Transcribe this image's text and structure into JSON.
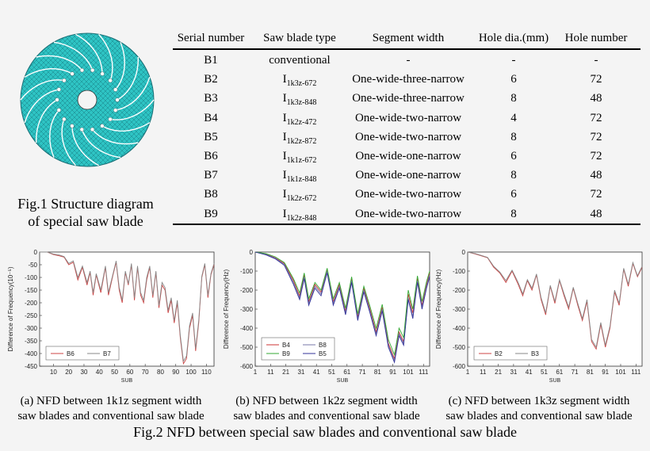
{
  "figure1": {
    "caption_line1": "Fig.1 Structure diagram",
    "caption_line2": "of special saw blade",
    "blade_color": "#2ec4c4"
  },
  "table": {
    "headers": [
      "Serial number",
      "Saw blade type",
      "Segment width",
      "Hole dia.(mm)",
      "Hole number"
    ],
    "rows": [
      {
        "serial": "B1",
        "type_base": "conventional",
        "type_sub": "",
        "segment": "-",
        "hole_dia": "-",
        "hole_num": "-"
      },
      {
        "serial": "B2",
        "type_base": "I",
        "type_sub": "1k3z-672",
        "segment": "One-wide-three-narrow",
        "hole_dia": "6",
        "hole_num": "72"
      },
      {
        "serial": "B3",
        "type_base": "I",
        "type_sub": "1k3z-848",
        "segment": "One-wide-three-narrow",
        "hole_dia": "8",
        "hole_num": "48"
      },
      {
        "serial": "B4",
        "type_base": "I",
        "type_sub": "1k2z-472",
        "segment": "One-wide-two-narrow",
        "hole_dia": "4",
        "hole_num": "72"
      },
      {
        "serial": "B5",
        "type_base": "I",
        "type_sub": "1k2z-872",
        "segment": "One-wide-two-narrow",
        "hole_dia": "8",
        "hole_num": "72"
      },
      {
        "serial": "B6",
        "type_base": "I",
        "type_sub": "1k1z-672",
        "segment": "One-wide-one-narrow",
        "hole_dia": "6",
        "hole_num": "72"
      },
      {
        "serial": "B7",
        "type_base": "I",
        "type_sub": "1k1z-848",
        "segment": "One-wide-one-narrow",
        "hole_dia": "8",
        "hole_num": "48"
      },
      {
        "serial": "B8",
        "type_base": "I",
        "type_sub": "1k2z-672",
        "segment": "One-wide-two-narrow",
        "hole_dia": "6",
        "hole_num": "72"
      },
      {
        "serial": "B9",
        "type_base": "I",
        "type_sub": "1k2z-848",
        "segment": "One-wide-two-narrow",
        "hole_dia": "8",
        "hole_num": "48"
      }
    ]
  },
  "captions": {
    "a_line1": "(a) NFD between 1k1z segment width",
    "a_line2": "saw blades and conventional saw blade",
    "b_line1": "(b) NFD between 1k2z segment width",
    "b_line2": "saw blades and conventional saw blade",
    "c_line1": "(c) NFD between 1k3z segment width",
    "c_line2": "saw blades and conventional saw blade",
    "fig2": "Fig.2 NFD between special saw blades and conventional saw blade"
  },
  "chart_data": [
    {
      "type": "line",
      "xlabel": "SUB",
      "ylabel": "Difference of Frequency(10⁻⁵)",
      "xlim": [
        1,
        115
      ],
      "ylim": [
        -450,
        0
      ],
      "xticks": [
        10,
        20,
        30,
        40,
        50,
        60,
        70,
        80,
        90,
        100,
        110
      ],
      "yticks": [
        0,
        -50,
        -100,
        -150,
        -200,
        -250,
        -300,
        -350,
        -400,
        -450
      ],
      "legend": [
        "B6",
        "B7"
      ],
      "series": [
        {
          "name": "B6",
          "color": "#cc4444",
          "x": [
            1,
            6,
            10,
            14,
            17,
            20,
            23,
            26,
            29,
            32,
            34,
            36,
            38,
            41,
            44,
            46,
            49,
            51,
            53,
            55,
            57,
            59,
            61,
            63,
            65,
            67,
            69,
            71,
            73,
            75,
            77,
            79,
            81,
            83,
            85,
            87,
            89,
            91,
            93,
            95,
            97,
            99,
            101,
            103,
            105,
            107,
            109,
            111,
            113,
            115
          ],
          "y": [
            0,
            0,
            -10,
            -15,
            -20,
            -50,
            -40,
            -110,
            -60,
            -130,
            -80,
            -170,
            -90,
            -160,
            -60,
            -170,
            -90,
            -40,
            -150,
            -200,
            -80,
            -130,
            -50,
            -190,
            -60,
            -170,
            -200,
            -110,
            -60,
            -180,
            -80,
            -220,
            -130,
            -150,
            -240,
            -190,
            -280,
            -200,
            -340,
            -440,
            -420,
            -300,
            -250,
            -390,
            -280,
            -100,
            -50,
            -180,
            -90,
            -50
          ]
        },
        {
          "name": "B7",
          "color": "#888888",
          "x": [
            1,
            6,
            10,
            14,
            17,
            20,
            23,
            26,
            29,
            32,
            34,
            36,
            38,
            41,
            44,
            46,
            49,
            51,
            53,
            55,
            57,
            59,
            61,
            63,
            65,
            67,
            69,
            71,
            73,
            75,
            77,
            79,
            81,
            83,
            85,
            87,
            89,
            91,
            93,
            95,
            97,
            99,
            101,
            103,
            105,
            107,
            109,
            111,
            113,
            115
          ],
          "y": [
            0,
            0,
            -8,
            -12,
            -18,
            -45,
            -35,
            -100,
            -55,
            -120,
            -75,
            -160,
            -85,
            -150,
            -55,
            -160,
            -85,
            -35,
            -140,
            -190,
            -75,
            -125,
            -45,
            -180,
            -55,
            -160,
            -190,
            -100,
            -55,
            -170,
            -75,
            -210,
            -120,
            -140,
            -230,
            -180,
            -270,
            -190,
            -330,
            -430,
            -410,
            -290,
            -240,
            -380,
            -270,
            -95,
            -45,
            -170,
            -85,
            -45
          ]
        }
      ]
    },
    {
      "type": "line",
      "xlabel": "SUB",
      "ylabel": "Difference of Frequency(Hz)",
      "xlim": [
        1,
        115
      ],
      "ylim": [
        -600,
        0
      ],
      "xticks": [
        1,
        11,
        21,
        31,
        41,
        51,
        61,
        71,
        81,
        91,
        101,
        111
      ],
      "yticks": [
        0,
        -100,
        -200,
        -300,
        -400,
        -500,
        -600
      ],
      "legend": [
        "B4",
        "B8",
        "B9",
        "B5"
      ],
      "series": [
        {
          "name": "B4",
          "color": "#cc3333",
          "x": [
            1,
            8,
            14,
            20,
            26,
            30,
            33,
            36,
            40,
            44,
            48,
            52,
            56,
            60,
            64,
            68,
            72,
            76,
            80,
            84,
            88,
            92,
            95,
            98,
            101,
            104,
            107,
            110,
            113,
            115
          ],
          "y": [
            0,
            -10,
            -30,
            -60,
            -150,
            -230,
            -120,
            -260,
            -170,
            -210,
            -90,
            -260,
            -170,
            -310,
            -140,
            -340,
            -190,
            -300,
            -420,
            -290,
            -480,
            -560,
            -420,
            -470,
            -220,
            -320,
            -140,
            -280,
            -170,
            -110
          ]
        },
        {
          "name": "B8",
          "color": "#7777aa",
          "x": [
            1,
            8,
            14,
            20,
            26,
            30,
            33,
            36,
            40,
            44,
            48,
            52,
            56,
            60,
            64,
            68,
            72,
            76,
            80,
            84,
            88,
            92,
            95,
            98,
            101,
            104,
            107,
            110,
            113,
            115
          ],
          "y": [
            0,
            -12,
            -32,
            -65,
            -160,
            -240,
            -130,
            -270,
            -180,
            -220,
            -100,
            -270,
            -180,
            -320,
            -150,
            -350,
            -200,
            -310,
            -430,
            -300,
            -490,
            -570,
            -430,
            -480,
            -240,
            -340,
            -150,
            -290,
            -180,
            -120
          ]
        },
        {
          "name": "B9",
          "color": "#33aa33",
          "x": [
            1,
            8,
            14,
            20,
            26,
            30,
            33,
            36,
            40,
            44,
            48,
            52,
            56,
            60,
            64,
            68,
            72,
            76,
            80,
            84,
            88,
            92,
            95,
            98,
            101,
            104,
            107,
            110,
            113,
            115
          ],
          "y": [
            0,
            -8,
            -25,
            -55,
            -140,
            -215,
            -110,
            -245,
            -160,
            -200,
            -85,
            -245,
            -160,
            -295,
            -130,
            -325,
            -180,
            -285,
            -400,
            -275,
            -460,
            -540,
            -400,
            -450,
            -200,
            -300,
            -125,
            -260,
            -155,
            -100
          ]
        },
        {
          "name": "B5",
          "color": "#333399",
          "x": [
            1,
            8,
            14,
            20,
            26,
            30,
            33,
            36,
            40,
            44,
            48,
            52,
            56,
            60,
            64,
            68,
            72,
            76,
            80,
            84,
            88,
            92,
            95,
            98,
            101,
            104,
            107,
            110,
            113,
            115
          ],
          "y": [
            0,
            -15,
            -35,
            -70,
            -170,
            -250,
            -140,
            -280,
            -190,
            -230,
            -110,
            -280,
            -190,
            -330,
            -160,
            -360,
            -210,
            -320,
            -440,
            -310,
            -500,
            -580,
            -440,
            -490,
            -250,
            -350,
            -160,
            -300,
            -190,
            -130
          ]
        }
      ]
    },
    {
      "type": "line",
      "xlabel": "SUB",
      "ylabel": "Difference of Frequency(Hz)",
      "xlim": [
        1,
        115
      ],
      "ylim": [
        -600,
        0
      ],
      "xticks": [
        1,
        11,
        21,
        31,
        41,
        51,
        61,
        71,
        81,
        91,
        101,
        111
      ],
      "yticks": [
        0,
        -100,
        -200,
        -300,
        -400,
        -500,
        -600
      ],
      "legend": [
        "B2",
        "B3"
      ],
      "series": [
        {
          "name": "B2",
          "color": "#cc4444",
          "x": [
            1,
            6,
            10,
            14,
            18,
            22,
            26,
            30,
            34,
            37,
            40,
            43,
            46,
            49,
            52,
            55,
            58,
            61,
            64,
            67,
            70,
            73,
            76,
            79,
            82,
            85,
            88,
            91,
            94,
            97,
            100,
            103,
            106,
            109,
            112,
            115
          ],
          "y": [
            0,
            -10,
            -20,
            -30,
            -80,
            -110,
            -160,
            -100,
            -170,
            -230,
            -150,
            -200,
            -120,
            -250,
            -330,
            -180,
            -270,
            -150,
            -230,
            -300,
            -190,
            -280,
            -360,
            -260,
            -470,
            -510,
            -380,
            -500,
            -400,
            -210,
            -280,
            -90,
            -180,
            -60,
            -130,
            -80
          ]
        },
        {
          "name": "B3",
          "color": "#888888",
          "x": [
            1,
            6,
            10,
            14,
            18,
            22,
            26,
            30,
            34,
            37,
            40,
            43,
            46,
            49,
            52,
            55,
            58,
            61,
            64,
            67,
            70,
            73,
            76,
            79,
            82,
            85,
            88,
            91,
            94,
            97,
            100,
            103,
            106,
            109,
            112,
            115
          ],
          "y": [
            0,
            -8,
            -18,
            -28,
            -75,
            -105,
            -150,
            -95,
            -160,
            -220,
            -145,
            -190,
            -115,
            -240,
            -320,
            -175,
            -260,
            -145,
            -220,
            -290,
            -185,
            -270,
            -350,
            -250,
            -460,
            -500,
            -370,
            -490,
            -390,
            -200,
            -270,
            -85,
            -170,
            -55,
            -125,
            -75
          ]
        }
      ]
    }
  ]
}
